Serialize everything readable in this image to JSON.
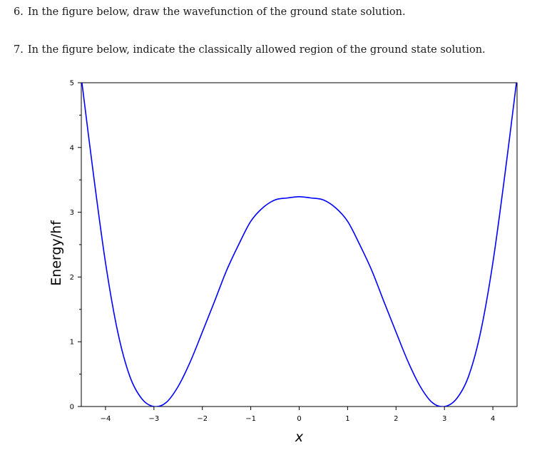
{
  "questions": [
    {
      "number": "6.",
      "text": "In the figure below, draw the wavefunction of the ground state solution."
    },
    {
      "number": "7.",
      "text": "In the figure below, indicate the classically allowed region of the ground state solution."
    }
  ],
  "chart_data": {
    "type": "line",
    "title": "",
    "xlabel": "x",
    "ylabel": "Energy/hf",
    "xlim": [
      -4.5,
      4.5
    ],
    "ylim": [
      0,
      5
    ],
    "x_ticks": [
      -4,
      -3,
      -2,
      -1,
      0,
      1,
      2,
      3,
      4
    ],
    "x_tick_labels": [
      "−4",
      "−3",
      "−2",
      "−1",
      "0",
      "1",
      "2",
      "3",
      "4"
    ],
    "y_ticks": [
      0,
      1,
      2,
      3,
      4,
      5
    ],
    "y_tick_labels": [
      "0",
      "1",
      "2",
      "3",
      "4",
      "5"
    ],
    "grid": false,
    "legend": "none",
    "series": [
      {
        "color": "#0000ff",
        "x": [
          -4.5,
          -4.25,
          -4.0,
          -3.75,
          -3.5,
          -3.25,
          -3.0,
          -2.75,
          -2.5,
          -2.25,
          -2.0,
          -1.75,
          -1.5,
          -1.25,
          -1.0,
          -0.75,
          -0.5,
          -0.25,
          0.0,
          0.25,
          0.5,
          0.75,
          1.0,
          1.25,
          1.5,
          1.75,
          2.0,
          2.25,
          2.5,
          2.75,
          3.0,
          3.25,
          3.5,
          3.75,
          4.0,
          4.25,
          4.5
        ],
        "y": [
          5.08,
          3.59,
          2.22,
          1.16,
          0.47,
          0.12,
          0.0,
          0.06,
          0.31,
          0.69,
          1.15,
          1.62,
          2.1,
          2.5,
          2.86,
          3.07,
          3.19,
          3.22,
          3.24,
          3.22,
          3.19,
          3.07,
          2.86,
          2.5,
          2.1,
          1.62,
          1.15,
          0.69,
          0.31,
          0.06,
          0.0,
          0.12,
          0.47,
          1.16,
          2.22,
          3.59,
          5.08
        ]
      }
    ]
  }
}
